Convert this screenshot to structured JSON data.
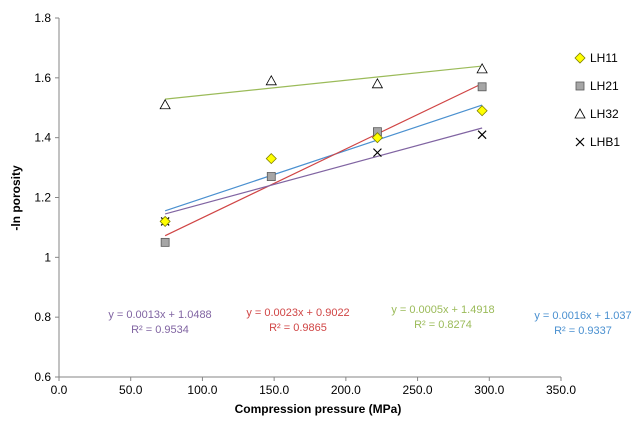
{
  "chart_data": {
    "type": "scatter",
    "xlabel": "Compression pressure (MPa)",
    "ylabel": "-ln porosity",
    "xlim": [
      0,
      350
    ],
    "ylim": [
      0.6,
      1.8
    ],
    "x_ticks": [
      "0.0",
      "50.0",
      "100.0",
      "150.0",
      "200.0",
      "250.0",
      "300.0",
      "350.0"
    ],
    "y_ticks": [
      "0.6",
      "0.8",
      "1",
      "1.2",
      "1.4",
      "1.6",
      "1.8"
    ],
    "grid": false,
    "legend_position": "right",
    "series": [
      {
        "name": "LH11",
        "marker": "diamond",
        "color": "#ffff00",
        "x": [
          74,
          148,
          222,
          295
        ],
        "y": [
          1.12,
          1.33,
          1.4,
          1.49
        ],
        "trendline": {
          "slope": 0.0016,
          "intercept": 1.037,
          "color": "#4a90d0"
        },
        "equation": "y = 0.0016x + 1.037",
        "r2": "R² = 0.9337",
        "eq_color": "#4a90d0"
      },
      {
        "name": "LH21",
        "marker": "square",
        "color": "#a6a6a6",
        "x": [
          74,
          148,
          222,
          295
        ],
        "y": [
          1.05,
          1.27,
          1.42,
          1.57
        ],
        "trendline": {
          "slope": 0.0023,
          "intercept": 0.9022,
          "color": "#d04545"
        },
        "equation": "y = 0.0023x + 0.9022",
        "r2": "R² = 0.9865",
        "eq_color": "#d04545"
      },
      {
        "name": "LH32",
        "marker": "triangle",
        "color": "#ffffff",
        "x": [
          74,
          148,
          222,
          295
        ],
        "y": [
          1.51,
          1.59,
          1.58,
          1.63
        ],
        "trendline": {
          "slope": 0.0005,
          "intercept": 1.4918,
          "color": "#9bbb59"
        },
        "equation": "y = 0.0005x + 1.4918",
        "r2": "R² = 0.8274",
        "eq_color": "#9bbb59"
      },
      {
        "name": "LHB1",
        "marker": "x",
        "color": "#000000",
        "x": [
          74,
          148,
          222,
          295
        ],
        "y": [
          1.12,
          1.27,
          1.35,
          1.41
        ],
        "trendline": {
          "slope": 0.0013,
          "intercept": 1.0488,
          "color": "#8064a2"
        },
        "equation": "y = 0.0013x + 1.0488",
        "r2": "R² = 0.9534",
        "eq_color": "#8064a2"
      }
    ]
  }
}
